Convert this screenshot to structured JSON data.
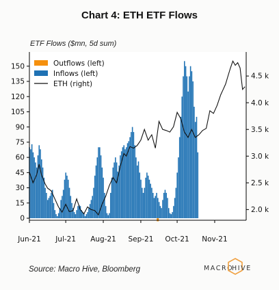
{
  "header": {
    "title": "Chart 4: ETH ETF Flows",
    "subtitle": "ETF Flows ($mn, 5d sum)"
  },
  "footer": {
    "source": "Source: Macro Hive, Bloomberg",
    "brand_left": "MACRO",
    "brand_right": "HIVE"
  },
  "colors": {
    "inflows": "#1f72b4",
    "outflows": "#f5900e",
    "eth_line": "#111111",
    "brand_orange": "#f0a040"
  },
  "chart_data": {
    "type": "bar",
    "title": "",
    "left_axis": {
      "ylim": [
        -2,
        164
      ],
      "ticks": [
        0,
        15,
        30,
        45,
        60,
        75,
        90,
        105,
        120,
        135,
        150
      ]
    },
    "right_axis": {
      "ylim": [
        1800,
        4950
      ],
      "ticks": [
        2000,
        2500,
        3000,
        3500,
        4000,
        4500
      ],
      "tick_labels": [
        "2.0 k",
        "2.5 k",
        "3.0 k",
        "3.5 k",
        "4.0 k",
        "4.5 k"
      ]
    },
    "x_tick_labels": [
      "Jun-21",
      "Jul-21",
      "Aug-21",
      "Sep-21",
      "Oct-21",
      "Nov-21"
    ],
    "x_tick_positions": [
      0,
      30,
      61,
      92,
      122,
      153
    ],
    "x_range": [
      0,
      179
    ],
    "legend": [
      "Outflows (left)",
      "Inflows (left)",
      "ETH (right)"
    ],
    "legend_position": "top-left",
    "series": [
      {
        "name": "Inflows (left)",
        "axis": "left",
        "kind": "bar",
        "values": [
          70,
          68,
          73,
          65,
          60,
          55,
          50,
          62,
          72,
          68,
          58,
          50,
          40,
          30,
          25,
          18,
          20,
          22,
          25,
          28,
          15,
          8,
          4,
          2,
          5,
          10,
          18,
          22,
          28,
          38,
          45,
          42,
          38,
          30,
          22,
          15,
          10,
          6,
          4,
          8,
          12,
          13,
          12,
          8,
          6,
          5,
          2,
          4,
          6,
          10,
          14,
          18,
          22,
          30,
          42,
          52,
          60,
          70,
          70,
          62,
          50,
          40,
          25,
          12,
          5,
          3,
          5,
          25,
          40,
          50,
          55,
          60,
          55,
          46,
          52,
          62,
          66,
          70,
          72,
          68,
          70,
          74,
          76,
          80,
          85,
          90,
          85,
          72,
          60,
          52,
          56,
          45,
          38,
          30,
          25,
          30,
          40,
          45,
          42,
          38,
          34,
          30,
          25,
          20,
          22,
          25,
          20,
          16,
          12,
          10,
          18,
          25,
          28,
          25,
          20,
          10,
          5,
          4,
          6,
          12,
          20,
          30,
          45,
          60,
          80,
          100,
          120,
          140,
          155,
          150,
          140,
          125,
          140,
          150,
          145,
          135,
          110,
          95,
          100,
          65
        ]
      },
      {
        "name": "Outflows (left)",
        "axis": "left",
        "kind": "bar",
        "points": [
          [
            106,
            -3
          ]
        ]
      },
      {
        "name": "ETH (right)",
        "axis": "right",
        "kind": "line",
        "x": [
          0,
          3,
          6,
          8,
          10,
          13,
          15,
          18,
          21,
          24,
          27,
          30,
          33,
          36,
          39,
          42,
          45,
          48,
          51,
          54,
          57,
          60,
          63,
          66,
          69,
          72,
          75,
          78,
          80,
          83,
          86,
          89,
          92,
          95,
          98,
          101,
          104,
          107,
          110,
          113,
          116,
          119,
          122,
          125,
          128,
          131,
          134,
          137,
          140,
          143,
          146,
          149,
          152,
          155,
          158,
          160,
          162,
          164,
          166,
          168,
          170,
          172,
          174,
          176,
          178
        ],
        "values": [
          2700,
          2500,
          2650,
          2850,
          2650,
          2480,
          2400,
          2350,
          2200,
          2050,
          1950,
          2100,
          1960,
          1980,
          2200,
          2000,
          1920,
          2050,
          2000,
          1980,
          1900,
          2100,
          2250,
          2450,
          2600,
          2500,
          2800,
          3050,
          3000,
          3180,
          3150,
          3200,
          3300,
          3500,
          3300,
          3400,
          3150,
          3650,
          3500,
          3480,
          3450,
          3550,
          3820,
          3700,
          3450,
          3350,
          3500,
          3350,
          3400,
          3480,
          3520,
          3850,
          3800,
          3950,
          4150,
          4250,
          4350,
          4500,
          4650,
          4780,
          4700,
          4750,
          4650,
          4250,
          4300
        ]
      }
    ]
  }
}
